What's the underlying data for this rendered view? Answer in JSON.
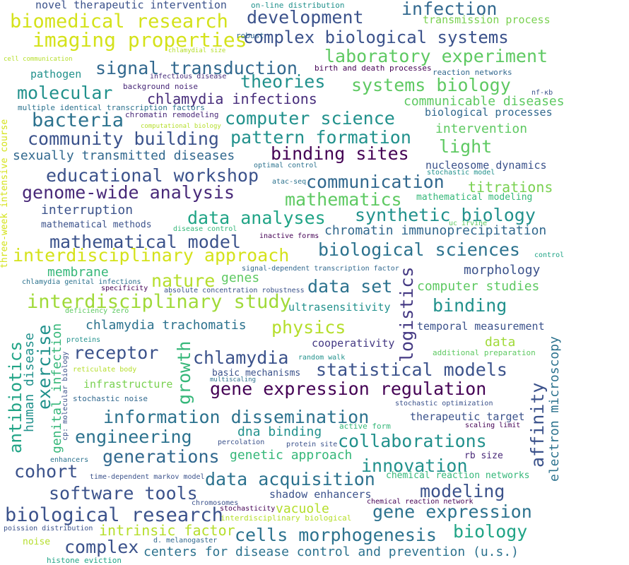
{
  "words": [
    {
      "text": "biomedical research",
      "color": "#d4e21a"
    },
    {
      "text": "development",
      "color": "#3b528b"
    },
    {
      "text": "infection",
      "color": "#31688e"
    },
    {
      "text": "imaging properties",
      "color": "#d4e21a"
    },
    {
      "text": "complex biological systems",
      "color": "#3b528b"
    },
    {
      "text": "laboratory experiment",
      "color": "#5ec962"
    },
    {
      "text": "signal transduction",
      "color": "#31688e"
    },
    {
      "text": "theories",
      "color": "#21918c"
    },
    {
      "text": "systems biology",
      "color": "#5ec962"
    },
    {
      "text": "molecular",
      "color": "#21918c"
    },
    {
      "text": "chlamydia infections",
      "color": "#472d7b"
    },
    {
      "text": "communicable diseases",
      "color": "#5ec962"
    },
    {
      "text": "bacteria",
      "color": "#2c728e"
    },
    {
      "text": "computer science",
      "color": "#21918c"
    },
    {
      "text": "community building",
      "color": "#3b528b"
    },
    {
      "text": "pattern formation",
      "color": "#21918c"
    },
    {
      "text": "intervention",
      "color": "#5ec962"
    },
    {
      "text": "light",
      "color": "#5ec962"
    },
    {
      "text": "binding sites",
      "color": "#440154"
    },
    {
      "text": "sexually transmitted diseases",
      "color": "#31688e"
    },
    {
      "text": "educational workshop",
      "color": "#3b528b"
    },
    {
      "text": "communication",
      "color": "#31688e"
    },
    {
      "text": "genome-wide analysis",
      "color": "#482878"
    },
    {
      "text": "mathematics",
      "color": "#5ec962"
    },
    {
      "text": "titrations",
      "color": "#7ad151"
    },
    {
      "text": "synthetic biology",
      "color": "#21918c"
    },
    {
      "text": "data analyses",
      "color": "#20a486"
    },
    {
      "text": "interruption",
      "color": "#3b528b"
    },
    {
      "text": "mathematical model",
      "color": "#3b528b"
    },
    {
      "text": "interdisciplinary approach",
      "color": "#d4e21a"
    },
    {
      "text": "biological sciences",
      "color": "#2c728e"
    },
    {
      "text": "chromatin immunoprecipitation",
      "color": "#31688e"
    },
    {
      "text": "mathematical methods",
      "color": "#3b528b"
    },
    {
      "text": "membrane",
      "color": "#35b779"
    },
    {
      "text": "nature",
      "color": "#b5de2b"
    },
    {
      "text": "genes",
      "color": "#5ec962"
    },
    {
      "text": "morphology",
      "color": "#3b528b"
    },
    {
      "text": "logistics",
      "color": "#443983"
    },
    {
      "text": "data set",
      "color": "#2c728e"
    },
    {
      "text": "computer studies",
      "color": "#5ec962"
    },
    {
      "text": "interdisciplinary study",
      "color": "#a0da39"
    },
    {
      "text": "binding",
      "color": "#21918c"
    },
    {
      "text": "ultrasensitivity",
      "color": "#21918c"
    },
    {
      "text": "physics",
      "color": "#b5de2b"
    },
    {
      "text": "chlamydia trachomatis",
      "color": "#2c728e"
    },
    {
      "text": "temporal measurement",
      "color": "#3b528b"
    },
    {
      "text": "cooperativity",
      "color": "#443983"
    },
    {
      "text": "data",
      "color": "#a0da39"
    },
    {
      "text": "receptor",
      "color": "#3b528b"
    },
    {
      "text": "chlamydia",
      "color": "#3b528b"
    },
    {
      "text": "statistical models",
      "color": "#3b528b"
    },
    {
      "text": "gene expression regulation",
      "color": "#440154"
    },
    {
      "text": "basic mechanisms",
      "color": "#3b528b"
    },
    {
      "text": "infrastructure",
      "color": "#7ad151"
    },
    {
      "text": "information dissemination",
      "color": "#2c728e"
    },
    {
      "text": "therapeutic target",
      "color": "#3b528b"
    },
    {
      "text": "engineering",
      "color": "#2c728e"
    },
    {
      "text": "dna binding",
      "color": "#21918c"
    },
    {
      "text": "collaborations",
      "color": "#21918c"
    },
    {
      "text": "generations",
      "color": "#31688e"
    },
    {
      "text": "genetic approach",
      "color": "#35b779"
    },
    {
      "text": "innovation",
      "color": "#21918c"
    },
    {
      "text": "cohort",
      "color": "#3b528b"
    },
    {
      "text": "data acquisition",
      "color": "#2c728e"
    },
    {
      "text": "software tools",
      "color": "#3b528b"
    },
    {
      "text": "modeling",
      "color": "#3b528b"
    },
    {
      "text": "shadow enhancers",
      "color": "#3b528b"
    },
    {
      "text": "biological research",
      "color": "#3b528b"
    },
    {
      "text": "vacuole",
      "color": "#b5de2b"
    },
    {
      "text": "gene expression",
      "color": "#2c728e"
    },
    {
      "text": "intrinsic factor",
      "color": "#b5de2b"
    },
    {
      "text": "cells morphogenesis",
      "color": "#2c728e"
    },
    {
      "text": "biology",
      "color": "#20a486"
    },
    {
      "text": "complex",
      "color": "#3b528b"
    },
    {
      "text": "centers for disease control and prevention (u.s.)",
      "color": "#2c728e"
    },
    {
      "text": "novel therapeutic intervention",
      "color": "#3b528b"
    },
    {
      "text": "on-line distribution",
      "color": "#21918c"
    },
    {
      "text": "transmission process",
      "color": "#7ad151"
    },
    {
      "text": "robust",
      "color": "#31688e"
    },
    {
      "text": "chlamydial size",
      "color": "#b5de2b"
    },
    {
      "text": "cell communication",
      "color": "#b5de2b"
    },
    {
      "text": "pathogen",
      "color": "#21918c"
    },
    {
      "text": "infectious disease",
      "color": "#472d7b"
    },
    {
      "text": "birth and death processes",
      "color": "#440154"
    },
    {
      "text": "reaction networks",
      "color": "#31688e"
    },
    {
      "text": "background noise",
      "color": "#482878"
    },
    {
      "text": "nf-κb",
      "color": "#3b528b"
    },
    {
      "text": "multiple identical transcription factors",
      "color": "#2c728e"
    },
    {
      "text": "chromatin remodeling",
      "color": "#482878"
    },
    {
      "text": "biological processes",
      "color": "#31688e"
    },
    {
      "text": "computational biology",
      "color": "#b5de2b"
    },
    {
      "text": "optimal control",
      "color": "#2c728e"
    },
    {
      "text": "nucleosome dynamics",
      "color": "#3b528b"
    },
    {
      "text": "stochastic model",
      "color": "#21918c"
    },
    {
      "text": "atac-seq",
      "color": "#2c728e"
    },
    {
      "text": "mathematical modeling",
      "color": "#35b779"
    },
    {
      "text": "disease control",
      "color": "#35b779"
    },
    {
      "text": "uc irvine",
      "color": "#5ec962"
    },
    {
      "text": "inactive forms",
      "color": "#440154"
    },
    {
      "text": "control",
      "color": "#20a486"
    },
    {
      "text": "signal-dependent transcription factor",
      "color": "#31688e"
    },
    {
      "text": "chlamydia genital infections",
      "color": "#2c728e"
    },
    {
      "text": "specificity",
      "color": "#440154"
    },
    {
      "text": "absolute concentration robustness",
      "color": "#3b528b"
    },
    {
      "text": "deficiency zero",
      "color": "#5ec962"
    },
    {
      "text": "proteins",
      "color": "#21918c"
    },
    {
      "text": "random walk",
      "color": "#21918c"
    },
    {
      "text": "additional preparation",
      "color": "#5ec962"
    },
    {
      "text": "reticulate body",
      "color": "#b5de2b"
    },
    {
      "text": "multiscaling",
      "color": "#2c728e"
    },
    {
      "text": "stochastic noise",
      "color": "#31688e"
    },
    {
      "text": "stochastic optimization",
      "color": "#3b528b"
    },
    {
      "text": "active form",
      "color": "#35b779"
    },
    {
      "text": "scaling limit",
      "color": "#440154"
    },
    {
      "text": "percolation",
      "color": "#3b528b"
    },
    {
      "text": "protein site",
      "color": "#3b528b"
    },
    {
      "text": "enhancers",
      "color": "#2c728e"
    },
    {
      "text": "rb size",
      "color": "#482878"
    },
    {
      "text": "time-dependent markov model",
      "color": "#3b528b"
    },
    {
      "text": "chemical reaction networks",
      "color": "#35b779"
    },
    {
      "text": "chromosomes",
      "color": "#3b528b"
    },
    {
      "text": "stochasticity",
      "color": "#440154"
    },
    {
      "text": "chemical reaction network",
      "color": "#440154"
    },
    {
      "text": "interdisciplinary biological",
      "color": "#b5de2b"
    },
    {
      "text": "poission distribution",
      "color": "#3b528b"
    },
    {
      "text": "noise",
      "color": "#b5de2b"
    },
    {
      "text": "d. melanogaster",
      "color": "#31688e"
    },
    {
      "text": "histone eviction",
      "color": "#20a486"
    },
    {
      "text": "three-week intensive course",
      "color": "#d4e21a"
    },
    {
      "text": "antibiotics",
      "color": "#20a486"
    },
    {
      "text": "human disease",
      "color": "#21918c"
    },
    {
      "text": "exercise",
      "color": "#21918c"
    },
    {
      "text": "genital infection",
      "color": "#35b779"
    },
    {
      "text": "cp: molecular biology",
      "color": "#3b528b"
    },
    {
      "text": "growth",
      "color": "#35b779"
    },
    {
      "text": "affinity",
      "color": "#3b528b"
    },
    {
      "text": "electron microscopy",
      "color": "#2c728e"
    }
  ]
}
